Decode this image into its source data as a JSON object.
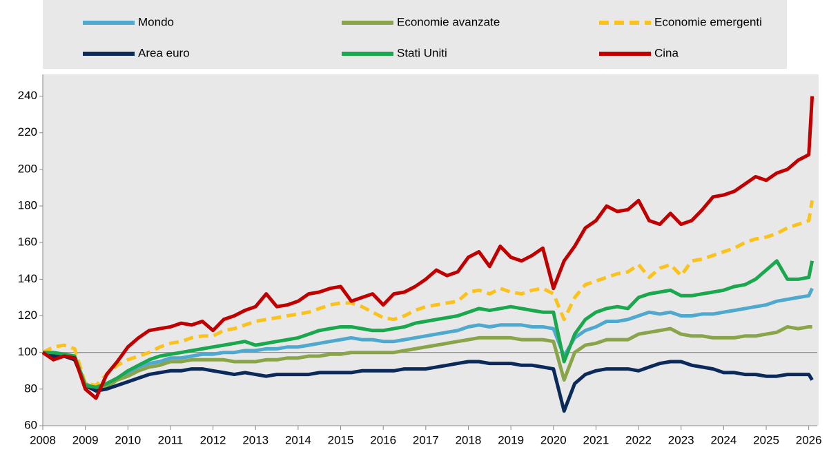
{
  "chart_data": {
    "type": "line",
    "x": [
      2008,
      2008.25,
      2008.5,
      2008.75,
      2009,
      2009.25,
      2009.5,
      2009.75,
      2010,
      2010.25,
      2010.5,
      2010.75,
      2011,
      2011.25,
      2011.5,
      2011.75,
      2012,
      2012.25,
      2012.5,
      2012.75,
      2013,
      2013.25,
      2013.5,
      2013.75,
      2014,
      2014.25,
      2014.5,
      2014.75,
      2015,
      2015.25,
      2015.5,
      2015.75,
      2016,
      2016.25,
      2016.5,
      2016.75,
      2017,
      2017.25,
      2017.5,
      2017.75,
      2018,
      2018.25,
      2018.5,
      2018.75,
      2019,
      2019.25,
      2019.5,
      2019.75,
      2020,
      2020.25,
      2020.5,
      2020.75,
      2021,
      2021.25,
      2021.5,
      2021.75,
      2022,
      2022.25,
      2022.5,
      2022.75,
      2023,
      2023.25,
      2023.5,
      2023.75,
      2024,
      2024.25,
      2024.5,
      2024.75,
      2025,
      2025.25,
      2025.5,
      2025.75,
      2026,
      2026.08
    ],
    "series": [
      {
        "name": "Mondo",
        "color": "#4fa9cf",
        "values": [
          100,
          99,
          99,
          97,
          83,
          80,
          82,
          86,
          89,
          92,
          94,
          95,
          97,
          97,
          98,
          99,
          99,
          100,
          100,
          101,
          101,
          102,
          102,
          103,
          103,
          104,
          105,
          106,
          107,
          108,
          107,
          107,
          106,
          106,
          107,
          108,
          109,
          110,
          111,
          112,
          114,
          115,
          114,
          115,
          115,
          115,
          114,
          114,
          113,
          98,
          108,
          112,
          114,
          117,
          117,
          118,
          120,
          122,
          121,
          122,
          120,
          120,
          121,
          121,
          122,
          123,
          124,
          125,
          126,
          128,
          129,
          130,
          131,
          135
        ]
      },
      {
        "name": "Economie avanzate",
        "color": "#8aa44a",
        "values": [
          100,
          99,
          99,
          97,
          83,
          80,
          81,
          85,
          87,
          90,
          92,
          93,
          95,
          95,
          96,
          96,
          96,
          96,
          95,
          95,
          95,
          96,
          96,
          97,
          97,
          98,
          98,
          99,
          99,
          100,
          100,
          100,
          100,
          100,
          101,
          102,
          103,
          104,
          105,
          106,
          107,
          108,
          108,
          108,
          108,
          107,
          107,
          107,
          106,
          85,
          100,
          104,
          105,
          107,
          107,
          107,
          110,
          111,
          112,
          113,
          110,
          109,
          109,
          108,
          108,
          108,
          109,
          109,
          110,
          111,
          114,
          113,
          114,
          114
        ]
      },
      {
        "name": "Economie emergenti",
        "color": "#fcc21c",
        "linestyle": "dashed",
        "values": [
          100,
          103,
          104,
          102,
          83,
          82,
          88,
          93,
          96,
          98,
          100,
          103,
          105,
          106,
          108,
          109,
          109,
          112,
          113,
          115,
          117,
          118,
          119,
          120,
          121,
          122,
          124,
          126,
          127,
          127,
          125,
          122,
          119,
          118,
          120,
          123,
          125,
          126,
          127,
          128,
          133,
          134,
          132,
          135,
          133,
          132,
          134,
          135,
          132,
          118,
          130,
          137,
          139,
          141,
          143,
          144,
          148,
          141,
          146,
          148,
          142,
          150,
          151,
          153,
          155,
          157,
          160,
          162,
          163,
          165,
          168,
          170,
          172,
          183
        ]
      },
      {
        "name": "Area euro",
        "color": "#0b2a5a",
        "values": [
          100,
          98,
          98,
          96,
          82,
          79,
          80,
          82,
          84,
          86,
          88,
          89,
          90,
          90,
          91,
          91,
          90,
          89,
          88,
          89,
          88,
          87,
          88,
          88,
          88,
          88,
          89,
          89,
          89,
          89,
          90,
          90,
          90,
          90,
          91,
          91,
          91,
          92,
          93,
          94,
          95,
          95,
          94,
          94,
          94,
          93,
          93,
          92,
          91,
          68,
          83,
          88,
          90,
          91,
          91,
          91,
          90,
          92,
          94,
          95,
          95,
          93,
          92,
          91,
          89,
          89,
          88,
          88,
          87,
          87,
          88,
          88,
          88,
          85
        ]
      },
      {
        "name": "Stati Uniti",
        "color": "#1aa84e",
        "values": [
          100,
          100,
          99,
          98,
          82,
          81,
          83,
          86,
          90,
          93,
          96,
          98,
          99,
          100,
          101,
          102,
          103,
          104,
          105,
          106,
          104,
          105,
          106,
          107,
          108,
          110,
          112,
          113,
          114,
          114,
          113,
          112,
          112,
          113,
          114,
          116,
          117,
          118,
          119,
          120,
          122,
          124,
          123,
          124,
          125,
          124,
          123,
          122,
          122,
          95,
          110,
          118,
          122,
          124,
          125,
          124,
          130,
          132,
          133,
          134,
          131,
          131,
          132,
          133,
          134,
          136,
          137,
          140,
          145,
          150,
          140,
          140,
          141,
          150
        ]
      },
      {
        "name": "Cina",
        "color": "#c00000",
        "values": [
          100,
          96,
          98,
          97,
          80,
          75,
          88,
          95,
          103,
          108,
          112,
          113,
          114,
          116,
          115,
          117,
          112,
          118,
          120,
          123,
          125,
          132,
          125,
          126,
          128,
          132,
          133,
          135,
          136,
          128,
          130,
          132,
          126,
          132,
          133,
          136,
          140,
          145,
          142,
          144,
          152,
          155,
          147,
          158,
          152,
          150,
          153,
          157,
          135,
          150,
          158,
          168,
          172,
          180,
          177,
          178,
          183,
          172,
          170,
          176,
          170,
          172,
          178,
          185,
          186,
          188,
          192,
          196,
          194,
          198,
          200,
          205,
          208,
          240
        ]
      }
    ],
    "xlim": [
      2008,
      2026.2
    ],
    "xticks": [
      2008,
      2009,
      2010,
      2011,
      2012,
      2013,
      2014,
      2015,
      2016,
      2017,
      2018,
      2019,
      2020,
      2021,
      2022,
      2023,
      2024,
      2025,
      2026
    ],
    "ylim": [
      60,
      250
    ],
    "yticks": [
      60,
      80,
      100,
      120,
      140,
      160,
      180,
      200,
      220,
      240
    ],
    "reference_line": 100
  }
}
